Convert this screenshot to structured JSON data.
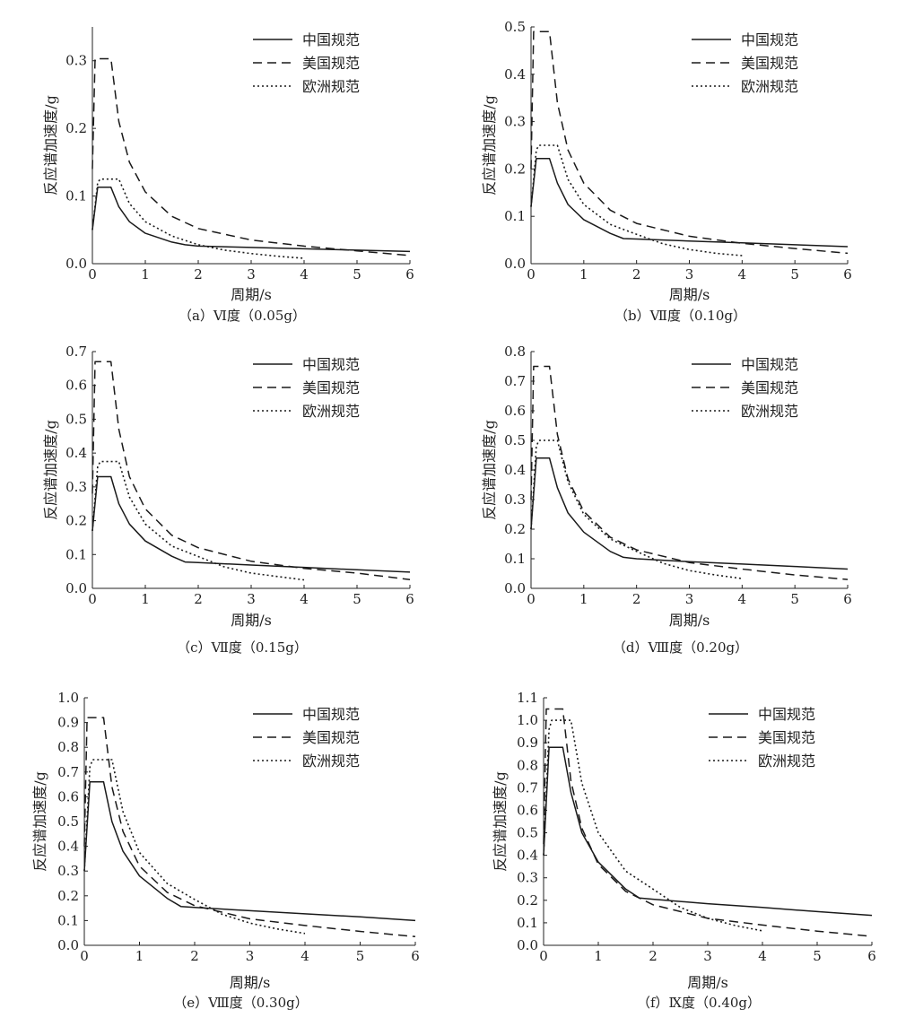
{
  "chart_data": [
    {
      "type": "line",
      "caption": "（a）Ⅵ度（0.05g）",
      "xlabel": "周期/s",
      "ylabel": "反应谱加速度/g",
      "xlim": [
        0,
        6
      ],
      "ylim": [
        0,
        0.35
      ],
      "xticks": [
        "0",
        "1",
        "2",
        "3",
        "4",
        "5",
        "6"
      ],
      "yticks": [
        "0.0",
        "0.1",
        "0.2",
        "0.3"
      ],
      "legend_position": "top-right",
      "series": [
        {
          "name": "中国规范",
          "style": "solid",
          "x": [
            0,
            0.1,
            0.35,
            0.5,
            0.7,
            1.0,
            1.5,
            1.75,
            2.0,
            3.0,
            4.0,
            5.0,
            6.0
          ],
          "y": [
            0.05,
            0.113,
            0.113,
            0.084,
            0.062,
            0.045,
            0.032,
            0.028,
            0.026,
            0.024,
            0.022,
            0.02,
            0.018
          ]
        },
        {
          "name": "美国规范",
          "style": "dashed",
          "x": [
            0,
            0.05,
            0.06,
            0.35,
            0.5,
            0.7,
            1.0,
            1.5,
            2.0,
            3.0,
            4.0,
            5.0,
            6.0
          ],
          "y": [
            0.14,
            0.303,
            0.303,
            0.303,
            0.21,
            0.15,
            0.106,
            0.07,
            0.052,
            0.035,
            0.026,
            0.019,
            0.012
          ]
        },
        {
          "name": "欧洲规范",
          "style": "dotted",
          "x": [
            0,
            0.1,
            0.15,
            0.5,
            0.7,
            1.0,
            1.5,
            2.0,
            2.5,
            3.0,
            3.5,
            4.0
          ],
          "y": [
            0.05,
            0.12,
            0.125,
            0.125,
            0.089,
            0.062,
            0.041,
            0.028,
            0.02,
            0.015,
            0.011,
            0.008
          ]
        }
      ]
    },
    {
      "type": "line",
      "caption": "（b）Ⅶ度（0.10g）",
      "xlabel": "周期/s",
      "ylabel": "反应谱加速度/g",
      "xlim": [
        0,
        6
      ],
      "ylim": [
        0,
        0.5
      ],
      "xticks": [
        "0",
        "1",
        "2",
        "3",
        "4",
        "5",
        "6"
      ],
      "yticks": [
        "0.0",
        "0.1",
        "0.2",
        "0.3",
        "0.4",
        "0.5"
      ],
      "legend_position": "top-right",
      "series": [
        {
          "name": "中国规范",
          "style": "solid",
          "x": [
            0,
            0.1,
            0.35,
            0.5,
            0.7,
            1.0,
            1.5,
            1.75,
            2.0,
            3.0,
            4.0,
            5.0,
            6.0
          ],
          "y": [
            0.12,
            0.222,
            0.222,
            0.17,
            0.125,
            0.093,
            0.064,
            0.053,
            0.052,
            0.048,
            0.044,
            0.04,
            0.036
          ]
        },
        {
          "name": "美国规范",
          "style": "dashed",
          "x": [
            0,
            0.05,
            0.06,
            0.35,
            0.5,
            0.7,
            1.0,
            1.5,
            2.0,
            3.0,
            4.0,
            5.0,
            6.0
          ],
          "y": [
            0.2,
            0.49,
            0.49,
            0.49,
            0.34,
            0.24,
            0.17,
            0.113,
            0.085,
            0.058,
            0.043,
            0.032,
            0.022
          ]
        },
        {
          "name": "欧洲规范",
          "style": "dotted",
          "x": [
            0,
            0.1,
            0.15,
            0.5,
            0.7,
            1.0,
            1.5,
            2.0,
            2.5,
            3.0,
            3.5,
            4.0
          ],
          "y": [
            0.12,
            0.24,
            0.25,
            0.25,
            0.178,
            0.125,
            0.083,
            0.062,
            0.042,
            0.03,
            0.022,
            0.017
          ]
        }
      ]
    },
    {
      "type": "line",
      "caption": "（c）Ⅶ度（0.15g）",
      "xlabel": "周期/s",
      "ylabel": "反应谱加速度/g",
      "xlim": [
        0,
        6
      ],
      "ylim": [
        0,
        0.7
      ],
      "xticks": [
        "0",
        "1",
        "2",
        "3",
        "4",
        "5",
        "6"
      ],
      "yticks": [
        "0.0",
        "0.1",
        "0.2",
        "0.3",
        "0.4",
        "0.5",
        "0.6",
        "0.7"
      ],
      "legend_position": "top-right",
      "series": [
        {
          "name": "中国规范",
          "style": "solid",
          "x": [
            0,
            0.1,
            0.35,
            0.5,
            0.7,
            1.0,
            1.5,
            1.75,
            2.0,
            3.0,
            4.0,
            5.0,
            6.0
          ],
          "y": [
            0.17,
            0.33,
            0.33,
            0.25,
            0.19,
            0.14,
            0.095,
            0.078,
            0.076,
            0.069,
            0.062,
            0.055,
            0.048
          ]
        },
        {
          "name": "美国规范",
          "style": "dashed",
          "x": [
            0,
            0.05,
            0.06,
            0.35,
            0.5,
            0.7,
            1.0,
            1.5,
            2.0,
            3.0,
            4.0,
            5.0,
            6.0
          ],
          "y": [
            0.28,
            0.67,
            0.67,
            0.67,
            0.47,
            0.33,
            0.235,
            0.157,
            0.12,
            0.08,
            0.059,
            0.045,
            0.026
          ]
        },
        {
          "name": "欧洲规范",
          "style": "dotted",
          "x": [
            0,
            0.1,
            0.15,
            0.5,
            0.7,
            1.0,
            1.5,
            2.0,
            2.5,
            3.0,
            3.5,
            4.0
          ],
          "y": [
            0.17,
            0.36,
            0.375,
            0.375,
            0.27,
            0.19,
            0.125,
            0.094,
            0.063,
            0.045,
            0.035,
            0.025
          ]
        }
      ]
    },
    {
      "type": "line",
      "caption": "（d）Ⅷ度（0.20g）",
      "xlabel": "周期/s",
      "ylabel": "反应谱加速度/g",
      "xlim": [
        0,
        6
      ],
      "ylim": [
        0,
        0.8
      ],
      "xticks": [
        "0",
        "1",
        "2",
        "3",
        "4",
        "5",
        "6"
      ],
      "yticks": [
        "0.0",
        "0.1",
        "0.2",
        "0.3",
        "0.4",
        "0.5",
        "0.6",
        "0.7",
        "0.8"
      ],
      "legend_position": "top-right",
      "series": [
        {
          "name": "中国规范",
          "style": "solid",
          "x": [
            0,
            0.1,
            0.35,
            0.5,
            0.7,
            1.0,
            1.5,
            1.75,
            2.0,
            3.0,
            4.0,
            5.0,
            6.0
          ],
          "y": [
            0.2,
            0.44,
            0.44,
            0.34,
            0.255,
            0.19,
            0.125,
            0.105,
            0.1,
            0.09,
            0.082,
            0.074,
            0.065
          ]
        },
        {
          "name": "美国规范",
          "style": "dashed",
          "x": [
            0,
            0.05,
            0.06,
            0.35,
            0.5,
            0.7,
            1.0,
            1.5,
            2.0,
            3.0,
            4.0,
            5.0,
            6.0
          ],
          "y": [
            0.3,
            0.75,
            0.75,
            0.75,
            0.52,
            0.37,
            0.26,
            0.173,
            0.13,
            0.087,
            0.065,
            0.045,
            0.03
          ]
        },
        {
          "name": "欧洲规范",
          "style": "dotted",
          "x": [
            0,
            0.1,
            0.15,
            0.5,
            0.7,
            1.0,
            1.5,
            2.0,
            2.5,
            3.0,
            3.5,
            4.0
          ],
          "y": [
            0.2,
            0.48,
            0.5,
            0.5,
            0.36,
            0.25,
            0.167,
            0.125,
            0.085,
            0.06,
            0.045,
            0.033
          ]
        }
      ]
    },
    {
      "type": "line",
      "caption": "（e）Ⅷ度（0.30g）",
      "xlabel": "周期/s",
      "ylabel": "反应谱加速度/g",
      "xlim": [
        0,
        6
      ],
      "ylim": [
        0,
        1.0
      ],
      "xticks": [
        "0",
        "1",
        "2",
        "3",
        "4",
        "5",
        "6"
      ],
      "yticks": [
        "0.0",
        "0.1",
        "0.2",
        "0.3",
        "0.4",
        "0.5",
        "0.6",
        "0.7",
        "0.8",
        "0.9",
        "1.0"
      ],
      "legend_position": "top-right",
      "series": [
        {
          "name": "中国规范",
          "style": "solid",
          "x": [
            0,
            0.1,
            0.35,
            0.5,
            0.7,
            1.0,
            1.5,
            1.75,
            2.0,
            3.0,
            4.0,
            5.0,
            6.0
          ],
          "y": [
            0.3,
            0.66,
            0.66,
            0.5,
            0.38,
            0.28,
            0.19,
            0.157,
            0.153,
            0.14,
            0.127,
            0.115,
            0.1
          ]
        },
        {
          "name": "美国规范",
          "style": "dashed",
          "x": [
            0,
            0.05,
            0.06,
            0.35,
            0.5,
            0.7,
            1.0,
            1.5,
            2.0,
            3.0,
            4.0,
            5.0,
            6.0
          ],
          "y": [
            0.4,
            0.92,
            0.92,
            0.92,
            0.64,
            0.46,
            0.32,
            0.214,
            0.16,
            0.107,
            0.08,
            0.056,
            0.035
          ]
        },
        {
          "name": "欧洲规范",
          "style": "dotted",
          "x": [
            0,
            0.1,
            0.15,
            0.5,
            0.7,
            1.0,
            1.5,
            2.0,
            2.5,
            3.0,
            3.5,
            4.0
          ],
          "y": [
            0.3,
            0.72,
            0.75,
            0.75,
            0.54,
            0.375,
            0.25,
            0.185,
            0.125,
            0.09,
            0.066,
            0.048
          ]
        }
      ]
    },
    {
      "type": "line",
      "caption": "（f）Ⅸ度（0.40g）",
      "xlabel": "周期/s",
      "ylabel": "反应谱加速度/g",
      "xlim": [
        0,
        6
      ],
      "ylim": [
        0,
        1.1
      ],
      "xticks": [
        "0",
        "1",
        "2",
        "3",
        "4",
        "5",
        "6"
      ],
      "yticks": [
        "0.0",
        "0.1",
        "0.2",
        "0.3",
        "0.4",
        "0.5",
        "0.6",
        "0.7",
        "0.8",
        "0.9",
        "1.0",
        "1.1"
      ],
      "legend_position": "top-right",
      "series": [
        {
          "name": "中国规范",
          "style": "solid",
          "x": [
            0,
            0.1,
            0.35,
            0.5,
            0.7,
            1.0,
            1.5,
            1.75,
            2.0,
            3.0,
            4.0,
            5.0,
            6.0
          ],
          "y": [
            0.4,
            0.88,
            0.88,
            0.68,
            0.5,
            0.37,
            0.25,
            0.21,
            0.205,
            0.185,
            0.168,
            0.15,
            0.133
          ]
        },
        {
          "name": "美国规范",
          "style": "dashed",
          "x": [
            0,
            0.05,
            0.06,
            0.35,
            0.5,
            0.7,
            1.0,
            1.5,
            2.0,
            3.0,
            4.0,
            5.0,
            6.0
          ],
          "y": [
            0.45,
            1.05,
            1.05,
            1.05,
            0.73,
            0.52,
            0.36,
            0.24,
            0.18,
            0.12,
            0.09,
            0.063,
            0.04
          ]
        },
        {
          "name": "欧洲规范",
          "style": "dotted",
          "x": [
            0,
            0.1,
            0.15,
            0.5,
            0.7,
            1.0,
            1.5,
            2.0,
            2.5,
            3.0,
            3.5,
            4.0
          ],
          "y": [
            0.4,
            0.96,
            1.0,
            1.0,
            0.72,
            0.5,
            0.33,
            0.25,
            0.168,
            0.12,
            0.088,
            0.064
          ]
        }
      ]
    }
  ]
}
